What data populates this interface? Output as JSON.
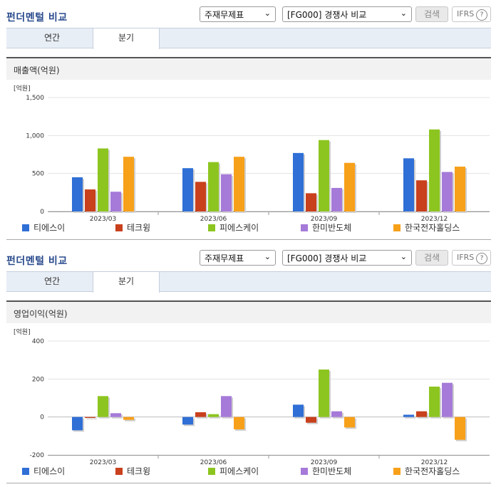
{
  "panels": [
    {
      "title": "펀더멘털 비교",
      "select_type": "주재무제표",
      "select_compare": "[FG000] 경쟁사 비교",
      "search_button": "검색",
      "ifrs_label": "IFRS",
      "tabs": [
        "연간",
        "분기"
      ],
      "active_tab": 1,
      "section_title": "매출액(억원)"
    },
    {
      "title": "펀더멘털 비교",
      "select_type": "주재무제표",
      "select_compare": "[FG000] 경쟁사 비교",
      "search_button": "검색",
      "ifrs_label": "IFRS",
      "tabs": [
        "연간",
        "분기"
      ],
      "active_tab": 1,
      "section_title": "영업이익(억원)"
    }
  ],
  "chart_data": [
    {
      "type": "bar",
      "unit_label": "[억원]",
      "categories": [
        "2023/03",
        "2023/06",
        "2023/09",
        "2023/12"
      ],
      "ylim": [
        0,
        1500
      ],
      "yticks": [
        0,
        500,
        1000,
        1500
      ],
      "ytick_labels": [
        "0",
        "500",
        "1,000",
        "1,500"
      ],
      "grid": true,
      "legend_position": "bottom",
      "series": [
        {
          "name": "티에스이",
          "color": "#2f6fd6",
          "values": [
            450,
            570,
            770,
            700
          ]
        },
        {
          "name": "테크윙",
          "color": "#c8401c",
          "values": [
            290,
            390,
            240,
            410
          ]
        },
        {
          "name": "피에스케이",
          "color": "#8dc520",
          "values": [
            830,
            650,
            940,
            1080
          ]
        },
        {
          "name": "한미반도체",
          "color": "#a57ad8",
          "values": [
            260,
            490,
            310,
            520
          ]
        },
        {
          "name": "한국전자홀딩스",
          "color": "#f7a01a",
          "values": [
            720,
            720,
            640,
            590
          ]
        }
      ]
    },
    {
      "type": "bar",
      "unit_label": "[억원]",
      "categories": [
        "2023/03",
        "2023/06",
        "2023/09",
        "2023/12"
      ],
      "ylim": [
        -200,
        400
      ],
      "yticks": [
        -200,
        0,
        200,
        400
      ],
      "ytick_labels": [
        "-200",
        "0",
        "200",
        "400"
      ],
      "grid": true,
      "legend_position": "bottom",
      "series": [
        {
          "name": "티에스이",
          "color": "#2f6fd6",
          "values": [
            -70,
            -40,
            65,
            12
          ]
        },
        {
          "name": "테크윙",
          "color": "#c8401c",
          "values": [
            -5,
            25,
            -30,
            30
          ]
        },
        {
          "name": "피에스케이",
          "color": "#8dc520",
          "values": [
            110,
            15,
            250,
            160
          ]
        },
        {
          "name": "한미반도체",
          "color": "#a57ad8",
          "values": [
            20,
            110,
            30,
            180
          ]
        },
        {
          "name": "한국전자홀딩스",
          "color": "#f7a01a",
          "values": [
            -15,
            -65,
            -55,
            -120
          ]
        }
      ]
    }
  ]
}
